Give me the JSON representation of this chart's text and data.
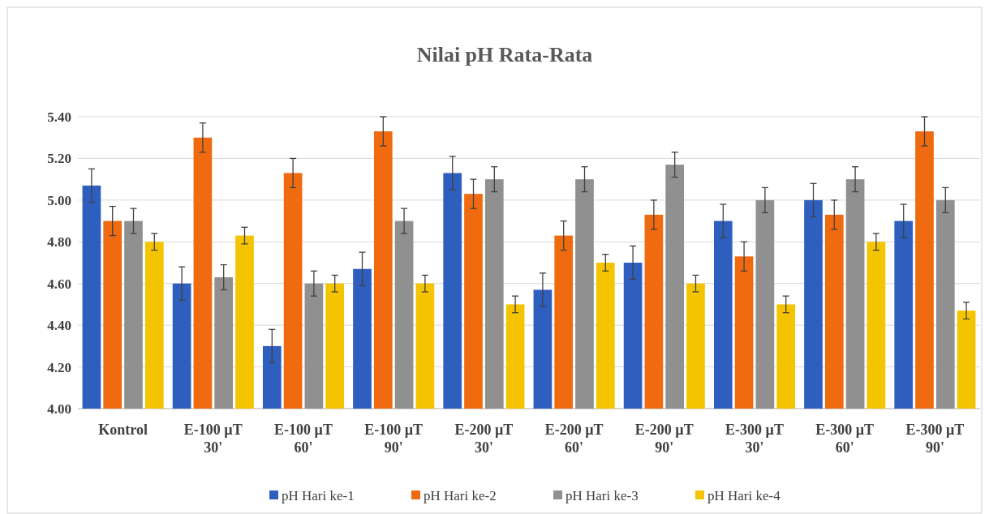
{
  "chart_data": {
    "type": "bar",
    "title": "Nilai pH  Rata-Rata",
    "categories": [
      "Kontrol",
      "E-100 µT 30'",
      "E-100 µT 60'",
      "E-100 µT 90'",
      "E-200 µT 30'",
      "E-200 µT 60'",
      "E-200 µT 90'",
      "E-300 µT 30'",
      "E-300 µT 60'",
      "E-300 µT 90'"
    ],
    "series": [
      {
        "name": "pH Hari ke-1",
        "color": "#2e5fbf",
        "values": [
          5.07,
          4.6,
          4.3,
          4.67,
          5.13,
          4.57,
          4.7,
          4.9,
          5.0,
          4.9
        ],
        "errors": [
          0.08,
          0.08,
          0.08,
          0.08,
          0.08,
          0.08,
          0.08,
          0.08,
          0.08,
          0.08
        ]
      },
      {
        "name": "pH Hari ke-2",
        "color": "#f06a10",
        "values": [
          4.9,
          5.3,
          5.13,
          5.33,
          5.03,
          4.83,
          4.93,
          4.73,
          4.93,
          5.33
        ],
        "errors": [
          0.07,
          0.07,
          0.07,
          0.07,
          0.07,
          0.07,
          0.07,
          0.07,
          0.07,
          0.07
        ]
      },
      {
        "name": "pH Hari ke-3",
        "color": "#909090",
        "values": [
          4.9,
          4.63,
          4.6,
          4.9,
          5.1,
          5.1,
          5.17,
          5.0,
          5.1,
          5.0
        ],
        "errors": [
          0.06,
          0.06,
          0.06,
          0.06,
          0.06,
          0.06,
          0.06,
          0.06,
          0.06,
          0.06
        ]
      },
      {
        "name": "pH Hari ke-4",
        "color": "#f5c400",
        "values": [
          4.8,
          4.83,
          4.6,
          4.6,
          4.5,
          4.7,
          4.6,
          4.5,
          4.8,
          4.47
        ],
        "errors": [
          0.04,
          0.04,
          0.04,
          0.04,
          0.04,
          0.04,
          0.04,
          0.04,
          0.04,
          0.04
        ]
      }
    ],
    "ylim": [
      4.0,
      5.4
    ],
    "yticks": [
      {
        "value": 4.0,
        "label": "4.00"
      },
      {
        "value": 4.2,
        "label": "4.20"
      },
      {
        "value": 4.4,
        "label": "4.40"
      },
      {
        "value": 4.6,
        "label": "4.60"
      },
      {
        "value": 4.8,
        "label": "4.80"
      },
      {
        "value": 5.0,
        "label": "5.00"
      },
      {
        "value": 5.2,
        "label": "5.20"
      },
      {
        "value": 5.4,
        "label": "5.40"
      }
    ],
    "grid": "y",
    "legend": "bottom"
  }
}
